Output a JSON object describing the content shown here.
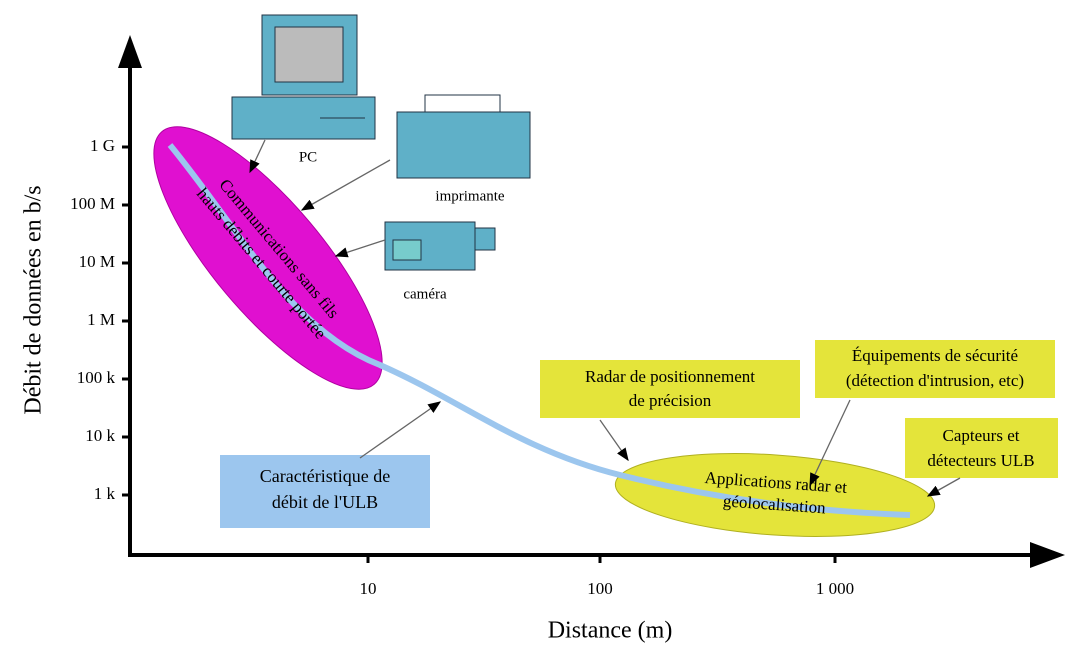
{
  "y_axis": {
    "title": "Débit de données en b/s",
    "ticks": [
      "1 G",
      "100 M",
      "10 M",
      "1 M",
      "100 k",
      "10 k",
      "1 k"
    ]
  },
  "x_axis": {
    "title": "Distance (m)",
    "ticks": [
      "10",
      "100",
      "1 000"
    ]
  },
  "devices": [
    "PC",
    "imprimante",
    "caméra"
  ],
  "zones": {
    "wireless": [
      "Communications sans fils",
      "hauts débits et courte portée"
    ],
    "radar": [
      "Applications radar et",
      "géolocalisation"
    ]
  },
  "callouts": {
    "curve": [
      "Caractéristique de",
      "débit de l'ULB"
    ],
    "positioning": [
      "Radar de positionnement",
      "de précision"
    ],
    "security": [
      "Équipements de sécurité",
      "(détection d'intrusion, etc)"
    ],
    "sensors": [
      "Capteurs et",
      "détecteurs ULB"
    ]
  }
}
